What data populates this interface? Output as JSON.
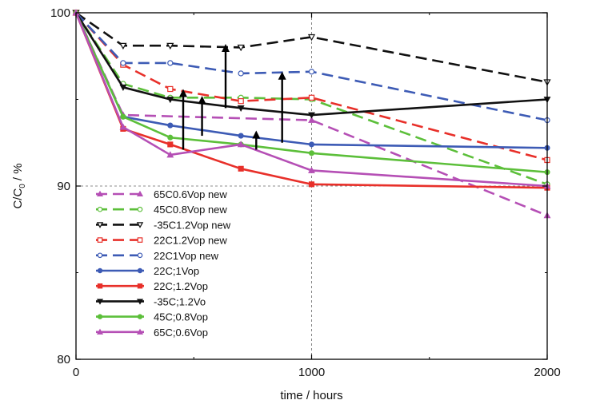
{
  "chart_data": {
    "type": "line",
    "xlabel": "time  / hours",
    "ylabel_main": "C/C",
    "ylabel_sub": "0",
    "ylabel_unit": "/  %",
    "xlim": [
      0,
      2000
    ],
    "ylim": [
      80,
      100
    ],
    "x_ticks": [
      "0",
      "1000",
      "2000"
    ],
    "y_ticks": [
      "80",
      "90",
      "100"
    ],
    "reference_lines": {
      "x": 1000,
      "y": 90
    },
    "legend_position": "lower-left",
    "series": [
      {
        "name": "65C0.6Vop new",
        "color": "#b54fb5",
        "dash": "dashed",
        "marker": "triangle-up",
        "x": [
          0,
          200,
          1000,
          2000
        ],
        "y": [
          100,
          94.1,
          93.8,
          88.3
        ]
      },
      {
        "name": "45C0.8Vop new",
        "color": "#5cbf3a",
        "dash": "dashed",
        "marker": "circle-open",
        "x": [
          0,
          200,
          400,
          700,
          1000,
          2000
        ],
        "y": [
          100,
          95.9,
          95.1,
          95.1,
          95.0,
          90.1
        ]
      },
      {
        "name": "-35C1.2Vop new",
        "color": "#111111",
        "dash": "dashed",
        "marker": "triangle-down-open",
        "x": [
          0,
          200,
          400,
          700,
          1000,
          2000
        ],
        "y": [
          100,
          98.1,
          98.1,
          98.0,
          98.6,
          96.0
        ]
      },
      {
        "name": "22C1.2Vop new",
        "color": "#e8302a",
        "dash": "dashed",
        "marker": "square-open",
        "x": [
          0,
          200,
          400,
          700,
          1000,
          2000
        ],
        "y": [
          100,
          97.0,
          95.6,
          94.9,
          95.1,
          91.5
        ]
      },
      {
        "name": "22C1Vop new",
        "color": "#3d5bb5",
        "dash": "dashed",
        "marker": "circle-open",
        "x": [
          0,
          200,
          400,
          700,
          1000,
          2000
        ],
        "y": [
          100,
          97.1,
          97.1,
          96.5,
          96.6,
          93.8
        ]
      },
      {
        "name": "22C;1Vop",
        "color": "#3d5bb5",
        "dash": "solid",
        "marker": "circle",
        "x": [
          0,
          200,
          400,
          700,
          1000,
          2000
        ],
        "y": [
          100,
          94.0,
          93.5,
          92.9,
          92.4,
          92.2
        ]
      },
      {
        "name": "22C;1.2Vop",
        "color": "#e8302a",
        "dash": "solid",
        "marker": "square",
        "x": [
          0,
          200,
          400,
          700,
          1000,
          2000
        ],
        "y": [
          100,
          93.3,
          92.4,
          91.0,
          90.1,
          89.9
        ]
      },
      {
        "name": "-35C;1.2Vo",
        "color": "#111111",
        "dash": "solid",
        "marker": "triangle-down",
        "x": [
          0,
          200,
          400,
          700,
          1000,
          2000
        ],
        "y": [
          100,
          95.7,
          95.0,
          94.5,
          94.1,
          95.0
        ]
      },
      {
        "name": "45C;0.8Vop",
        "color": "#5cbf3a",
        "dash": "solid",
        "marker": "circle",
        "x": [
          0,
          200,
          400,
          700,
          1000,
          2000
        ],
        "y": [
          100,
          94.0,
          92.8,
          92.4,
          91.9,
          90.8
        ]
      },
      {
        "name": "65C;0.6Vop",
        "color": "#b54fb5",
        "dash": "solid",
        "marker": "triangle-up",
        "x": [
          0,
          200,
          400,
          700,
          1000,
          2000
        ],
        "y": [
          100,
          93.4,
          91.8,
          92.4,
          90.9,
          90.0
        ]
      }
    ],
    "annotations": {
      "arrows": [
        {
          "x": 455,
          "y_from": 92.1,
          "y_to": 95.6
        },
        {
          "x": 535,
          "y_from": 92.9,
          "y_to": 95.2
        },
        {
          "x": 635,
          "y_from": 94.5,
          "y_to": 98.2
        },
        {
          "x": 765,
          "y_from": 92.1,
          "y_to": 93.2
        },
        {
          "x": 875,
          "y_from": 92.5,
          "y_to": 96.6
        }
      ]
    }
  }
}
